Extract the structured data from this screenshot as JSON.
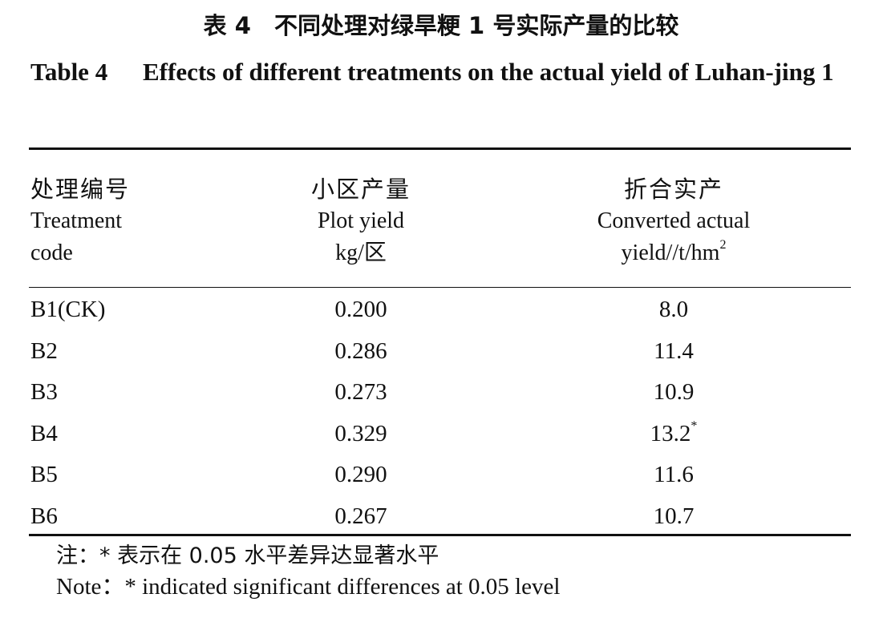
{
  "title": {
    "zh": "表 4　不同处理对绿旱粳 1 号实际产量的比较",
    "en_label": "Table 4",
    "en_text": "Effects of different treatments on the actual yield of Luhan-jing 1"
  },
  "columns": [
    {
      "zh": "处理编号",
      "en_line1": "Treatment",
      "en_line2": "code"
    },
    {
      "zh": "小区产量",
      "en_line1": "Plot yield",
      "en_line2": "kg/区"
    },
    {
      "zh": "折合实产",
      "en_line1": "Converted actual",
      "en_line2": "yield//t/hm",
      "en_sup": "2"
    }
  ],
  "rows": [
    {
      "code": "B1(CK)",
      "plot_yield": "0.200",
      "converted": "8.0",
      "mark": ""
    },
    {
      "code": "B2",
      "plot_yield": "0.286",
      "converted": "11.4",
      "mark": ""
    },
    {
      "code": "B3",
      "plot_yield": "0.273",
      "converted": "10.9",
      "mark": ""
    },
    {
      "code": "B4",
      "plot_yield": "0.329",
      "converted": "13.2",
      "mark": "*"
    },
    {
      "code": "B5",
      "plot_yield": "0.290",
      "converted": "11.6",
      "mark": ""
    },
    {
      "code": "B6",
      "plot_yield": "0.267",
      "converted": "10.7",
      "mark": ""
    }
  ],
  "notes": {
    "zh": "注：* 表示在 0.05 水平差异达显著水平",
    "en": "Note：*  indicated significant differences at 0.05 level"
  }
}
